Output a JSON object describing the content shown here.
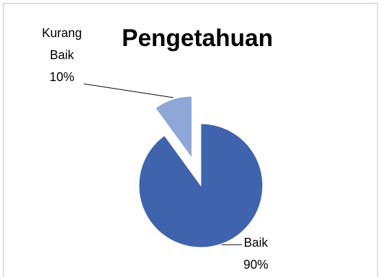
{
  "chart_data": {
    "type": "pie",
    "title": "Pengetahuan",
    "categories": [
      "Baik",
      "Kurang Baik"
    ],
    "values": [
      90,
      10
    ],
    "value_labels": [
      "90%",
      "10%"
    ],
    "colors": [
      "#3f64ad",
      "#8fa7d7"
    ]
  }
}
